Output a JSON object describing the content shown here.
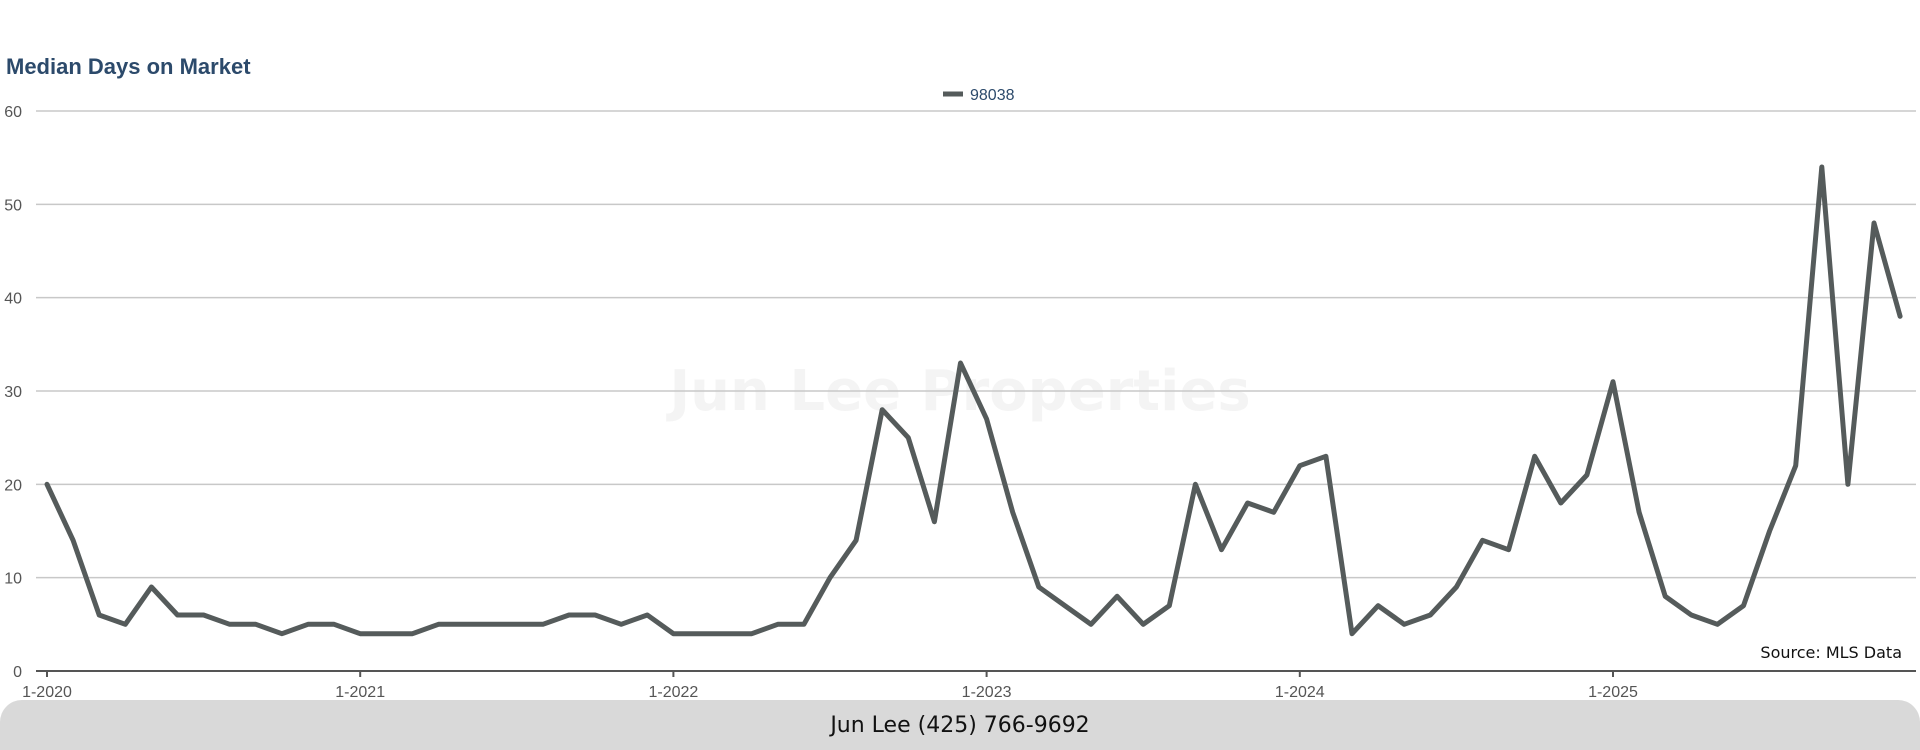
{
  "title": "Median Days on Market",
  "watermark": "Jun Lee Properties",
  "source": "Source: MLS Data",
  "footer": {
    "contact": "Jun Lee (425) 766-9692"
  },
  "colors": {
    "line": "#555b5b",
    "title": "#2c4a6b",
    "grid": "#c8c8c8",
    "axis": "#555555",
    "footer_bg": "#d9d9d9"
  },
  "chart_data": {
    "type": "line",
    "title": "Median Days on Market",
    "xlabel": "",
    "ylabel": "",
    "ylim": [
      0,
      60
    ],
    "yticks": [
      0,
      10,
      20,
      30,
      40,
      50,
      60
    ],
    "xtick_labels": [
      "1-2020",
      "1-2021",
      "1-2022",
      "1-2023",
      "1-2024",
      "1-2025"
    ],
    "grid": true,
    "legend_position": "top-center",
    "series": [
      {
        "name": "98038",
        "start": "1-2020",
        "x": [
          "1-2020",
          "2-2020",
          "3-2020",
          "4-2020",
          "5-2020",
          "6-2020",
          "7-2020",
          "8-2020",
          "9-2020",
          "10-2020",
          "11-2020",
          "12-2020",
          "1-2021",
          "2-2021",
          "3-2021",
          "4-2021",
          "5-2021",
          "6-2021",
          "7-2021",
          "8-2021",
          "9-2021",
          "10-2021",
          "11-2021",
          "12-2021",
          "1-2022",
          "2-2022",
          "3-2022",
          "4-2022",
          "5-2022",
          "6-2022",
          "7-2022",
          "8-2022",
          "9-2022",
          "10-2022",
          "11-2022",
          "12-2022",
          "1-2023",
          "2-2023",
          "3-2023",
          "4-2023",
          "5-2023",
          "6-2023",
          "7-2023",
          "8-2023",
          "9-2023",
          "10-2023",
          "11-2023",
          "12-2023",
          "1-2024",
          "2-2024",
          "3-2024",
          "4-2024",
          "5-2024",
          "6-2024",
          "7-2024",
          "8-2024",
          "9-2024",
          "10-2024",
          "11-2024",
          "12-2024",
          "1-2025",
          "2-2025",
          "3-2025",
          "4-2025",
          "5-2025",
          "6-2025",
          "7-2025",
          "8-2025",
          "9-2025",
          "10-2025",
          "11-2025",
          "12-2025"
        ],
        "values": [
          20,
          14,
          6,
          5,
          9,
          6,
          6,
          5,
          5,
          4,
          5,
          5,
          4,
          4,
          4,
          5,
          5,
          5,
          5,
          5,
          6,
          6,
          5,
          6,
          4,
          4,
          4,
          4,
          5,
          5,
          10,
          14,
          28,
          25,
          16,
          33,
          27,
          17,
          9,
          7,
          5,
          8,
          5,
          7,
          20,
          13,
          18,
          17,
          22,
          23,
          4,
          7,
          5,
          6,
          9,
          14,
          13,
          23,
          18,
          21,
          31,
          17,
          8,
          6,
          5,
          7,
          15,
          22,
          54,
          20,
          48,
          38
        ]
      }
    ]
  }
}
